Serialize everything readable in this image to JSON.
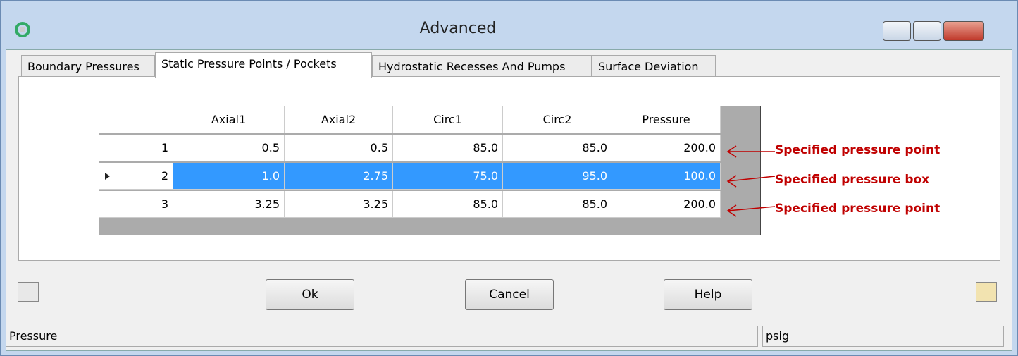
{
  "window": {
    "title": "Advanced"
  },
  "tabs": [
    "Boundary Pressures",
    "Static Pressure Points / Pockets",
    "Hydrostatic Recesses And Pumps",
    "Surface Deviation"
  ],
  "table": {
    "columns": [
      "Axial1",
      "Axial2",
      "Circ1",
      "Circ2",
      "Pressure"
    ],
    "rows": [
      [
        "1",
        "0.5",
        "0.5",
        "85.0",
        "85.0",
        "200.0"
      ],
      [
        "2",
        "1.0",
        "2.75",
        "75.0",
        "95.0",
        "100.0"
      ],
      [
        "3",
        "3.25",
        "3.25",
        "85.0",
        "85.0",
        "200.0"
      ]
    ]
  },
  "annotations": [
    "Specified pressure point",
    "Specified pressure box",
    "Specified pressure point"
  ],
  "buttons": [
    "Ok",
    "Cancel",
    "Help"
  ],
  "status": [
    "Pressure",
    "psig"
  ]
}
